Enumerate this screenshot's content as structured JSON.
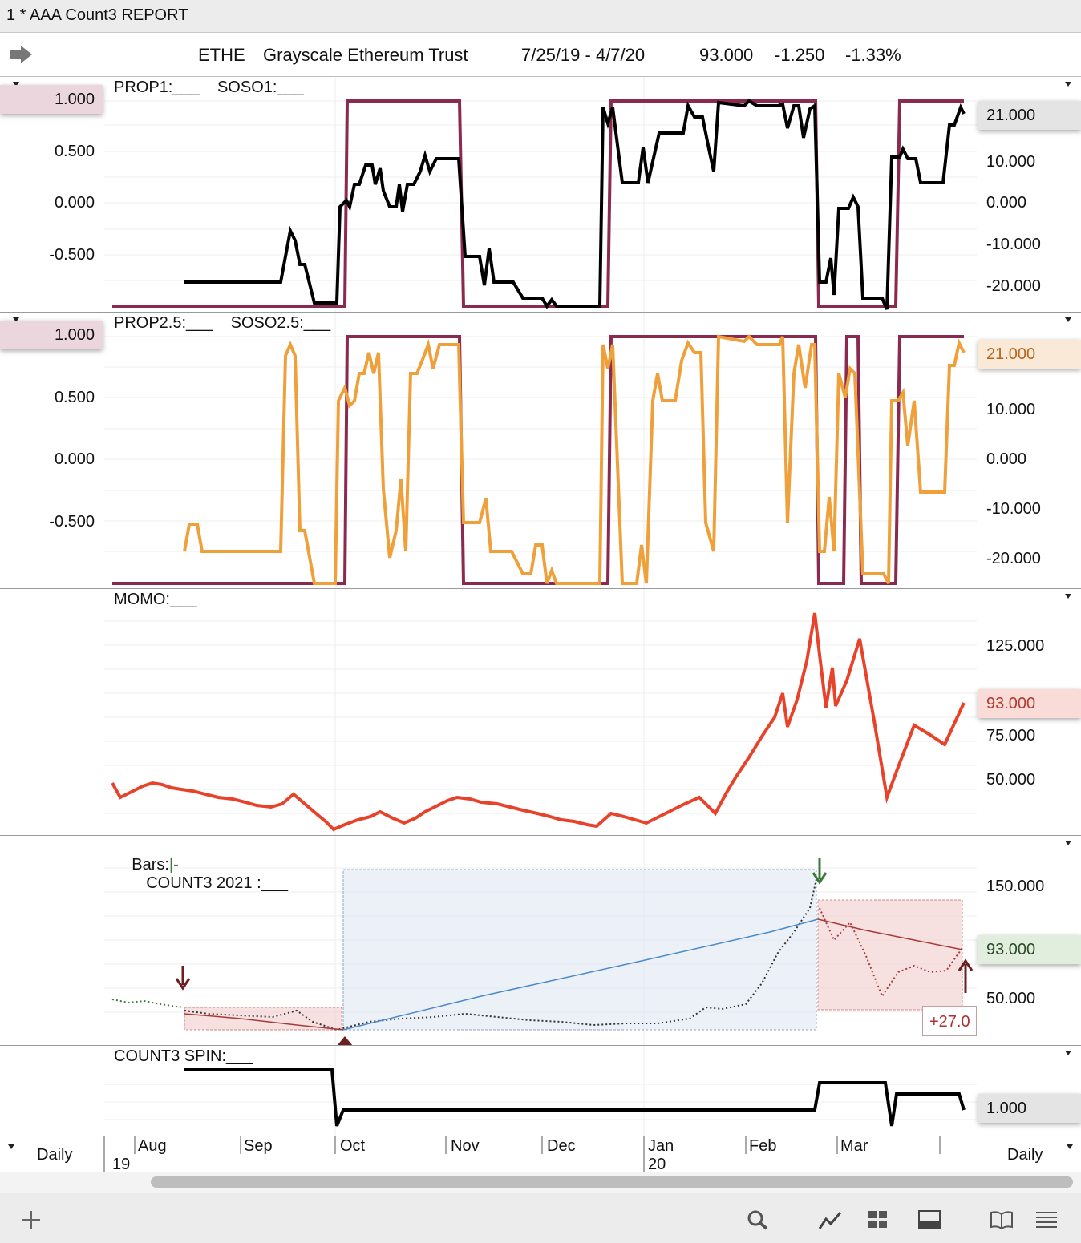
{
  "window": {
    "title": "1 *  AAA Count3 REPORT"
  },
  "header": {
    "symbol": "ETHE",
    "name": "Grayscale Ethereum Trust",
    "date_range": "7/25/19 - 4/7/20",
    "last": "93.000",
    "change": "-1.250",
    "change_pct": "-1.33%"
  },
  "panes": {
    "prop1": {
      "title": "PROP1:___    SOSO1:___",
      "left_labels": [
        "1.000",
        "0.500",
        "0.000",
        "-0.500"
      ],
      "right_labels": [
        "10.000",
        "0.000",
        "-10.000",
        "-20.000"
      ],
      "right_badge": "21.000"
    },
    "prop25": {
      "title": "PROP2.5:___    SOSO2.5:___",
      "left_labels": [
        "1.000",
        "0.500",
        "0.000",
        "-0.500"
      ],
      "right_labels": [
        "10.000",
        "0.000",
        "-10.000",
        "-20.000"
      ],
      "right_badge": "21.000"
    },
    "momo": {
      "title": "MOMO:___",
      "right_labels": [
        "125.000",
        "75.000",
        "50.000"
      ],
      "right_badge": "93.000"
    },
    "count3": {
      "title_bars": "Bars:",
      "title_bars_sym": "|-",
      "title": "COUNT3 2021 :___",
      "right_labels": [
        "150.000",
        "50.000"
      ],
      "right_badge": "93.000",
      "gain_label": "+27.0"
    },
    "spin": {
      "title": "COUNT3 SPIN:___",
      "right_badge": "1.000"
    }
  },
  "xaxis": {
    "left_period": "Daily",
    "right_period": "Daily",
    "months": [
      "Aug",
      "Sep",
      "Oct",
      "Nov",
      "Dec",
      "Jan",
      "Feb",
      "Mar"
    ],
    "years": [
      "19",
      "20"
    ]
  },
  "colors": {
    "soso": "#8b2a4f",
    "prop1": "#000000",
    "prop25": "#f0a03a",
    "momo": "#e8432a",
    "count3_line": "#4a8ac9",
    "count3_down": "#a83a3a"
  },
  "icons": [
    "arrow-right-icon",
    "plus-icon",
    "search-icon",
    "line-chart-icon",
    "grid-icon",
    "panel-icon",
    "book-icon",
    "list-icon"
  ]
}
